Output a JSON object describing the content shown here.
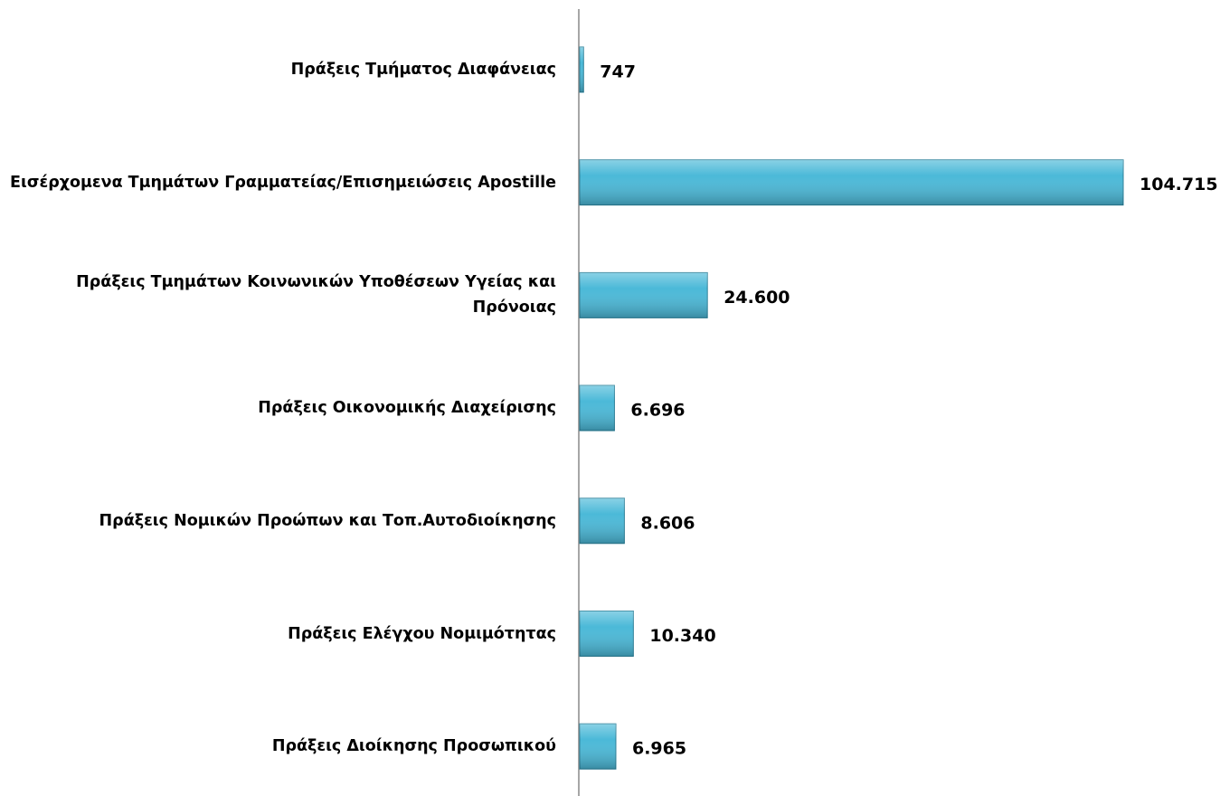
{
  "chart_data": {
    "type": "barh",
    "categories": [
      "Πράξεις Τμήματος Διαφάνειας",
      "Εισέρχομενα Τμημάτων Γραμματείας/Επισημειώσεις Apostille",
      "Πράξεις Τμημάτων Κοινωνικών Υποθέσεων Υγείας και Πρόνοιας",
      "Πράξεις Οικονομικής Διαχείρισης",
      "Πράξεις Νομικών Προώπων και Τοπ.Αυτοδιοίκησης",
      "Πράξεις Ελέγχου Νομιμότητας",
      "Πράξεις Διοίκησης Προσωπικού"
    ],
    "values": [
      747,
      104715,
      24600,
      6696,
      8606,
      10340,
      6965
    ],
    "value_labels": [
      "747",
      "104.715",
      "24.600",
      "6.696",
      "8.606",
      "10.340",
      "6.965"
    ],
    "color": "#4bb9d8"
  }
}
